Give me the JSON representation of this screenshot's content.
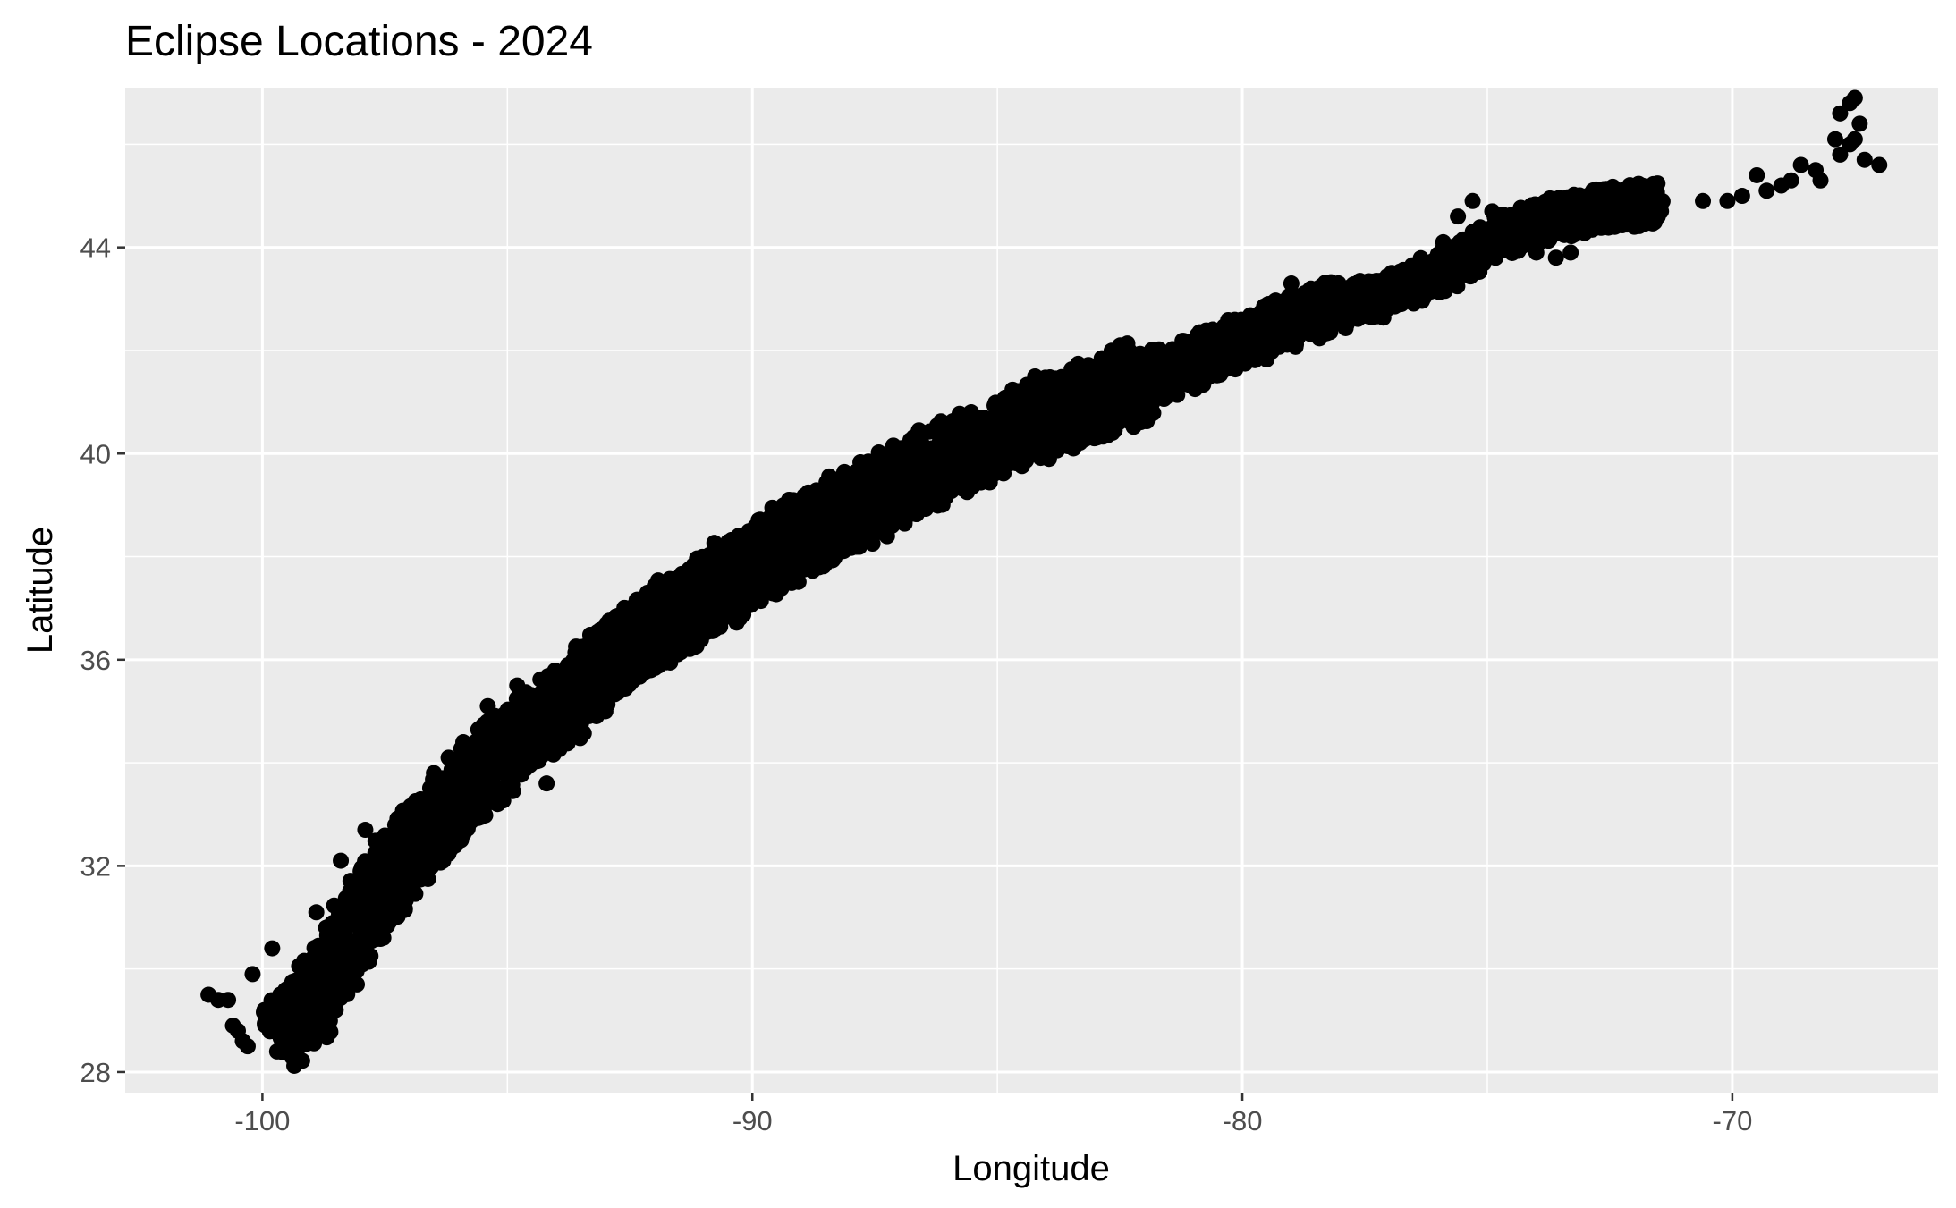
{
  "chart_data": {
    "type": "scatter",
    "title": "Eclipse Locations - 2024",
    "xlabel": "Longitude",
    "ylabel": "Latitude",
    "xlim": [
      -102.8,
      -65.8
    ],
    "ylim": [
      27.6,
      47.1
    ],
    "x_ticks": [
      -100,
      -90,
      -80,
      -70
    ],
    "x_tick_labels": [
      "-100",
      "-90",
      "-80",
      "-70"
    ],
    "y_ticks": [
      28,
      32,
      36,
      40,
      44
    ],
    "y_tick_labels": [
      "28",
      "32",
      "36",
      "40",
      "44"
    ],
    "grid": true,
    "legend": "none",
    "colors": {
      "panel": "#ebebeb",
      "grid": "#ffffff",
      "point": "#000000",
      "tick": "#4d4d4d"
    },
    "path_centerline": [
      [
        -99.7,
        28.6
      ],
      [
        -99.0,
        29.3
      ],
      [
        -98.0,
        31.0
      ],
      [
        -97.0,
        32.3
      ],
      [
        -96.0,
        33.3
      ],
      [
        -95.0,
        34.3
      ],
      [
        -94.0,
        35.0
      ],
      [
        -93.0,
        35.9
      ],
      [
        -92.0,
        36.6
      ],
      [
        -91.0,
        37.2
      ],
      [
        -90.0,
        37.8
      ],
      [
        -89.0,
        38.4
      ],
      [
        -88.0,
        38.9
      ],
      [
        -87.0,
        39.4
      ],
      [
        -86.0,
        39.9
      ],
      [
        -85.0,
        40.3
      ],
      [
        -84.0,
        40.7
      ],
      [
        -83.0,
        41.1
      ],
      [
        -82.0,
        41.4
      ],
      [
        -81.0,
        41.8
      ],
      [
        -80.0,
        42.2
      ],
      [
        -79.0,
        42.6
      ],
      [
        -78.0,
        42.9
      ],
      [
        -77.0,
        43.1
      ],
      [
        -76.0,
        43.5
      ],
      [
        -75.0,
        44.1
      ],
      [
        -74.0,
        44.5
      ],
      [
        -73.0,
        44.7
      ],
      [
        -72.0,
        44.8
      ],
      [
        -71.5,
        44.9
      ]
    ],
    "path_halfwidth_deg": 0.75,
    "outlier_points": [
      [
        -101.1,
        29.5
      ],
      [
        -100.9,
        29.4
      ],
      [
        -100.7,
        29.4
      ],
      [
        -100.6,
        28.9
      ],
      [
        -100.5,
        28.8
      ],
      [
        -100.4,
        28.6
      ],
      [
        -100.3,
        28.5
      ],
      [
        -100.2,
        29.9
      ],
      [
        -99.8,
        30.4
      ],
      [
        -99.7,
        28.4
      ],
      [
        -99.6,
        28.8
      ],
      [
        -99.5,
        29.2
      ],
      [
        -99.4,
        28.5
      ],
      [
        -98.9,
        31.1
      ],
      [
        -98.7,
        30.8
      ],
      [
        -98.5,
        30.9
      ],
      [
        -98.4,
        32.1
      ],
      [
        -97.9,
        32.7
      ],
      [
        -97.7,
        31.4
      ],
      [
        -96.5,
        33.8
      ],
      [
        -96.2,
        34.1
      ],
      [
        -95.9,
        34.4
      ],
      [
        -95.4,
        35.1
      ],
      [
        -95.2,
        33.2
      ],
      [
        -94.8,
        35.5
      ],
      [
        -94.6,
        34.1
      ],
      [
        -94.2,
        33.6
      ],
      [
        -93.7,
        35.5
      ],
      [
        -93.0,
        35.0
      ],
      [
        -92.6,
        37.0
      ],
      [
        -92.0,
        36.3
      ],
      [
        -91.5,
        37.4
      ],
      [
        -91.1,
        37.6
      ],
      [
        -90.7,
        36.9
      ],
      [
        -90.3,
        38.0
      ],
      [
        -79.0,
        43.3
      ],
      [
        -78.6,
        43.2
      ],
      [
        -78.2,
        43.3
      ],
      [
        -77.5,
        43.2
      ],
      [
        -76.4,
        43.4
      ],
      [
        -75.9,
        44.1
      ],
      [
        -75.6,
        44.6
      ],
      [
        -75.3,
        44.9
      ],
      [
        -74.9,
        44.7
      ],
      [
        -74.5,
        44.3
      ],
      [
        -74.2,
        44.2
      ],
      [
        -74.0,
        43.9
      ],
      [
        -73.6,
        43.8
      ],
      [
        -73.3,
        43.9
      ],
      [
        -72.0,
        44.4
      ],
      [
        -71.8,
        45.0
      ],
      [
        -71.6,
        44.6
      ],
      [
        -70.6,
        44.9
      ],
      [
        -70.1,
        44.9
      ],
      [
        -69.8,
        45.0
      ],
      [
        -69.5,
        45.4
      ],
      [
        -69.3,
        45.1
      ],
      [
        -69.0,
        45.2
      ],
      [
        -68.8,
        45.3
      ],
      [
        -68.6,
        45.6
      ],
      [
        -68.3,
        45.5
      ],
      [
        -68.2,
        45.3
      ],
      [
        -67.9,
        46.1
      ],
      [
        -67.8,
        46.6
      ],
      [
        -67.6,
        46.8
      ],
      [
        -67.5,
        46.9
      ],
      [
        -67.4,
        46.4
      ],
      [
        -67.3,
        45.7
      ],
      [
        -67.5,
        46.1
      ],
      [
        -67.0,
        45.6
      ],
      [
        -67.6,
        46.0
      ],
      [
        -67.8,
        45.8
      ]
    ]
  }
}
